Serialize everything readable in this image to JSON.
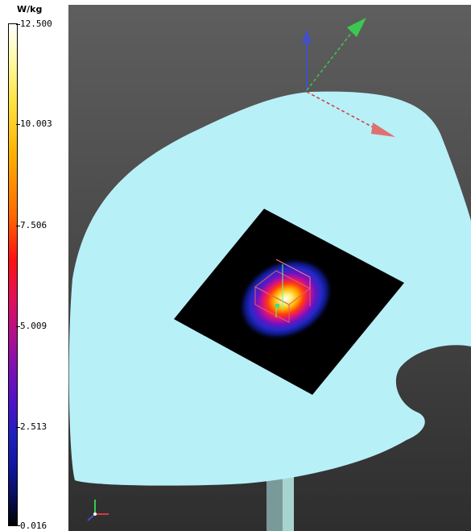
{
  "colorbar": {
    "unit": "W/kg",
    "ticks": [
      "12.500",
      "10.003",
      "7.506",
      "5.009",
      "2.513",
      "0.016"
    ]
  },
  "colors": {
    "phantom": "#b8f0f8",
    "background_top": "#5e5e5e",
    "background_bottom": "#2e2e2e",
    "axis_x": "#d23c3c",
    "axis_y": "#3cc850",
    "axis_z": "#4050c8"
  },
  "icons": {
    "axes_gizmo": "xyz-axes-icon",
    "view_triad": "xyz-triad-icon"
  }
}
